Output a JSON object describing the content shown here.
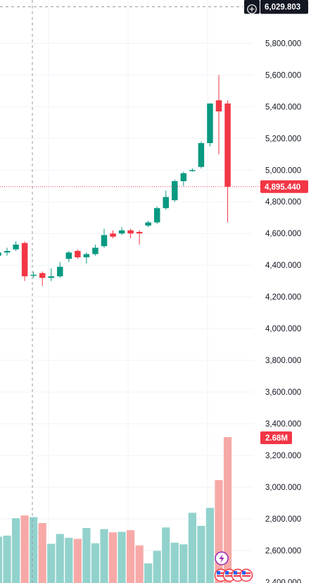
{
  "chart_data": {
    "type": "candlestick",
    "y_axis": {
      "ylim": [
        2400,
        6070
      ],
      "ticks": [
        "5,800.000",
        "5,600.000",
        "5,400.000",
        "5,200.000",
        "5,000.000",
        "4,800.000",
        "4,600.000",
        "4,400.000",
        "4,200.000",
        "4,000.000",
        "3,800.000",
        "3,600.000",
        "3,400.000",
        "3,200.000",
        "3,000.000",
        "2,800.000",
        "2,600.000",
        "2,400.000"
      ],
      "tick_values": [
        5800,
        5600,
        5400,
        5200,
        5000,
        4800,
        4600,
        4400,
        4200,
        4000,
        3800,
        3600,
        3400,
        3200,
        3000,
        2800,
        2600,
        2400
      ]
    },
    "crosshair": {
      "price_label": "6,029.803",
      "price": 6029.803
    },
    "last_price": {
      "label": "4,895.440",
      "value": 4895.44
    },
    "volume_label": "2.68M",
    "candles": [
      {
        "o": 4460,
        "h": 4490,
        "l": 4440,
        "c": 4480
      },
      {
        "o": 4480,
        "h": 4510,
        "l": 4460,
        "c": 4490
      },
      {
        "o": 4500,
        "h": 4550,
        "l": 4490,
        "c": 4530
      },
      {
        "o": 4540,
        "h": 4550,
        "l": 4300,
        "c": 4330
      },
      {
        "o": 4340,
        "h": 4360,
        "l": 4320,
        "c": 4340
      },
      {
        "o": 4350,
        "h": 4360,
        "l": 4270,
        "c": 4320
      },
      {
        "o": 4320,
        "h": 4380,
        "l": 4300,
        "c": 4330
      },
      {
        "o": 4330,
        "h": 4420,
        "l": 4320,
        "c": 4390
      },
      {
        "o": 4440,
        "h": 4490,
        "l": 4420,
        "c": 4480
      },
      {
        "o": 4490,
        "h": 4500,
        "l": 4440,
        "c": 4450
      },
      {
        "o": 4450,
        "h": 4480,
        "l": 4410,
        "c": 4470
      },
      {
        "o": 4470,
        "h": 4530,
        "l": 4460,
        "c": 4510
      },
      {
        "o": 4520,
        "h": 4630,
        "l": 4510,
        "c": 4590
      },
      {
        "o": 4600,
        "h": 4620,
        "l": 4570,
        "c": 4580
      },
      {
        "o": 4600,
        "h": 4640,
        "l": 4590,
        "c": 4620
      },
      {
        "o": 4620,
        "h": 4630,
        "l": 4570,
        "c": 4600
      },
      {
        "o": 4610,
        "h": 4620,
        "l": 4530,
        "c": 4600
      },
      {
        "o": 4650,
        "h": 4680,
        "l": 4640,
        "c": 4670
      },
      {
        "o": 4670,
        "h": 4770,
        "l": 4660,
        "c": 4760
      },
      {
        "o": 4760,
        "h": 4870,
        "l": 4750,
        "c": 4830
      },
      {
        "o": 4810,
        "h": 4940,
        "l": 4800,
        "c": 4930
      },
      {
        "o": 4930,
        "h": 4990,
        "l": 4900,
        "c": 4980
      },
      {
        "o": 5000,
        "h": 5010,
        "l": 4990,
        "c": 5000
      },
      {
        "o": 5020,
        "h": 5180,
        "l": 5010,
        "c": 5170
      },
      {
        "o": 5170,
        "h": 5420,
        "l": 5150,
        "c": 5420
      },
      {
        "o": 5440,
        "h": 5600,
        "l": 5100,
        "c": 5370
      },
      {
        "o": 5420,
        "h": 5440,
        "l": 4670,
        "c": 4895.44
      }
    ],
    "volumes": [
      0.85,
      0.87,
      1.19,
      1.24,
      1.21,
      1.1,
      0.72,
      0.9,
      0.83,
      0.81,
      1.01,
      0.73,
      0.99,
      0.93,
      0.94,
      0.97,
      0.69,
      0.36,
      0.59,
      1.02,
      0.74,
      0.71,
      1.29,
      1.05,
      1.38,
      1.89,
      2.68
    ]
  },
  "colors": {
    "up": "#089981",
    "down": "#f23645",
    "up_volume": "#92d2cc",
    "down_volume": "#f7a9a7",
    "grid": "#f0f3fa",
    "crosshair": "#9598a1",
    "last_price_line": "#f23645",
    "dark_badge": "#131722",
    "event_icon": "#9c27b0"
  },
  "icons": [
    "plus-circle-icon",
    "lightning-icon",
    "us-flag-icon"
  ]
}
